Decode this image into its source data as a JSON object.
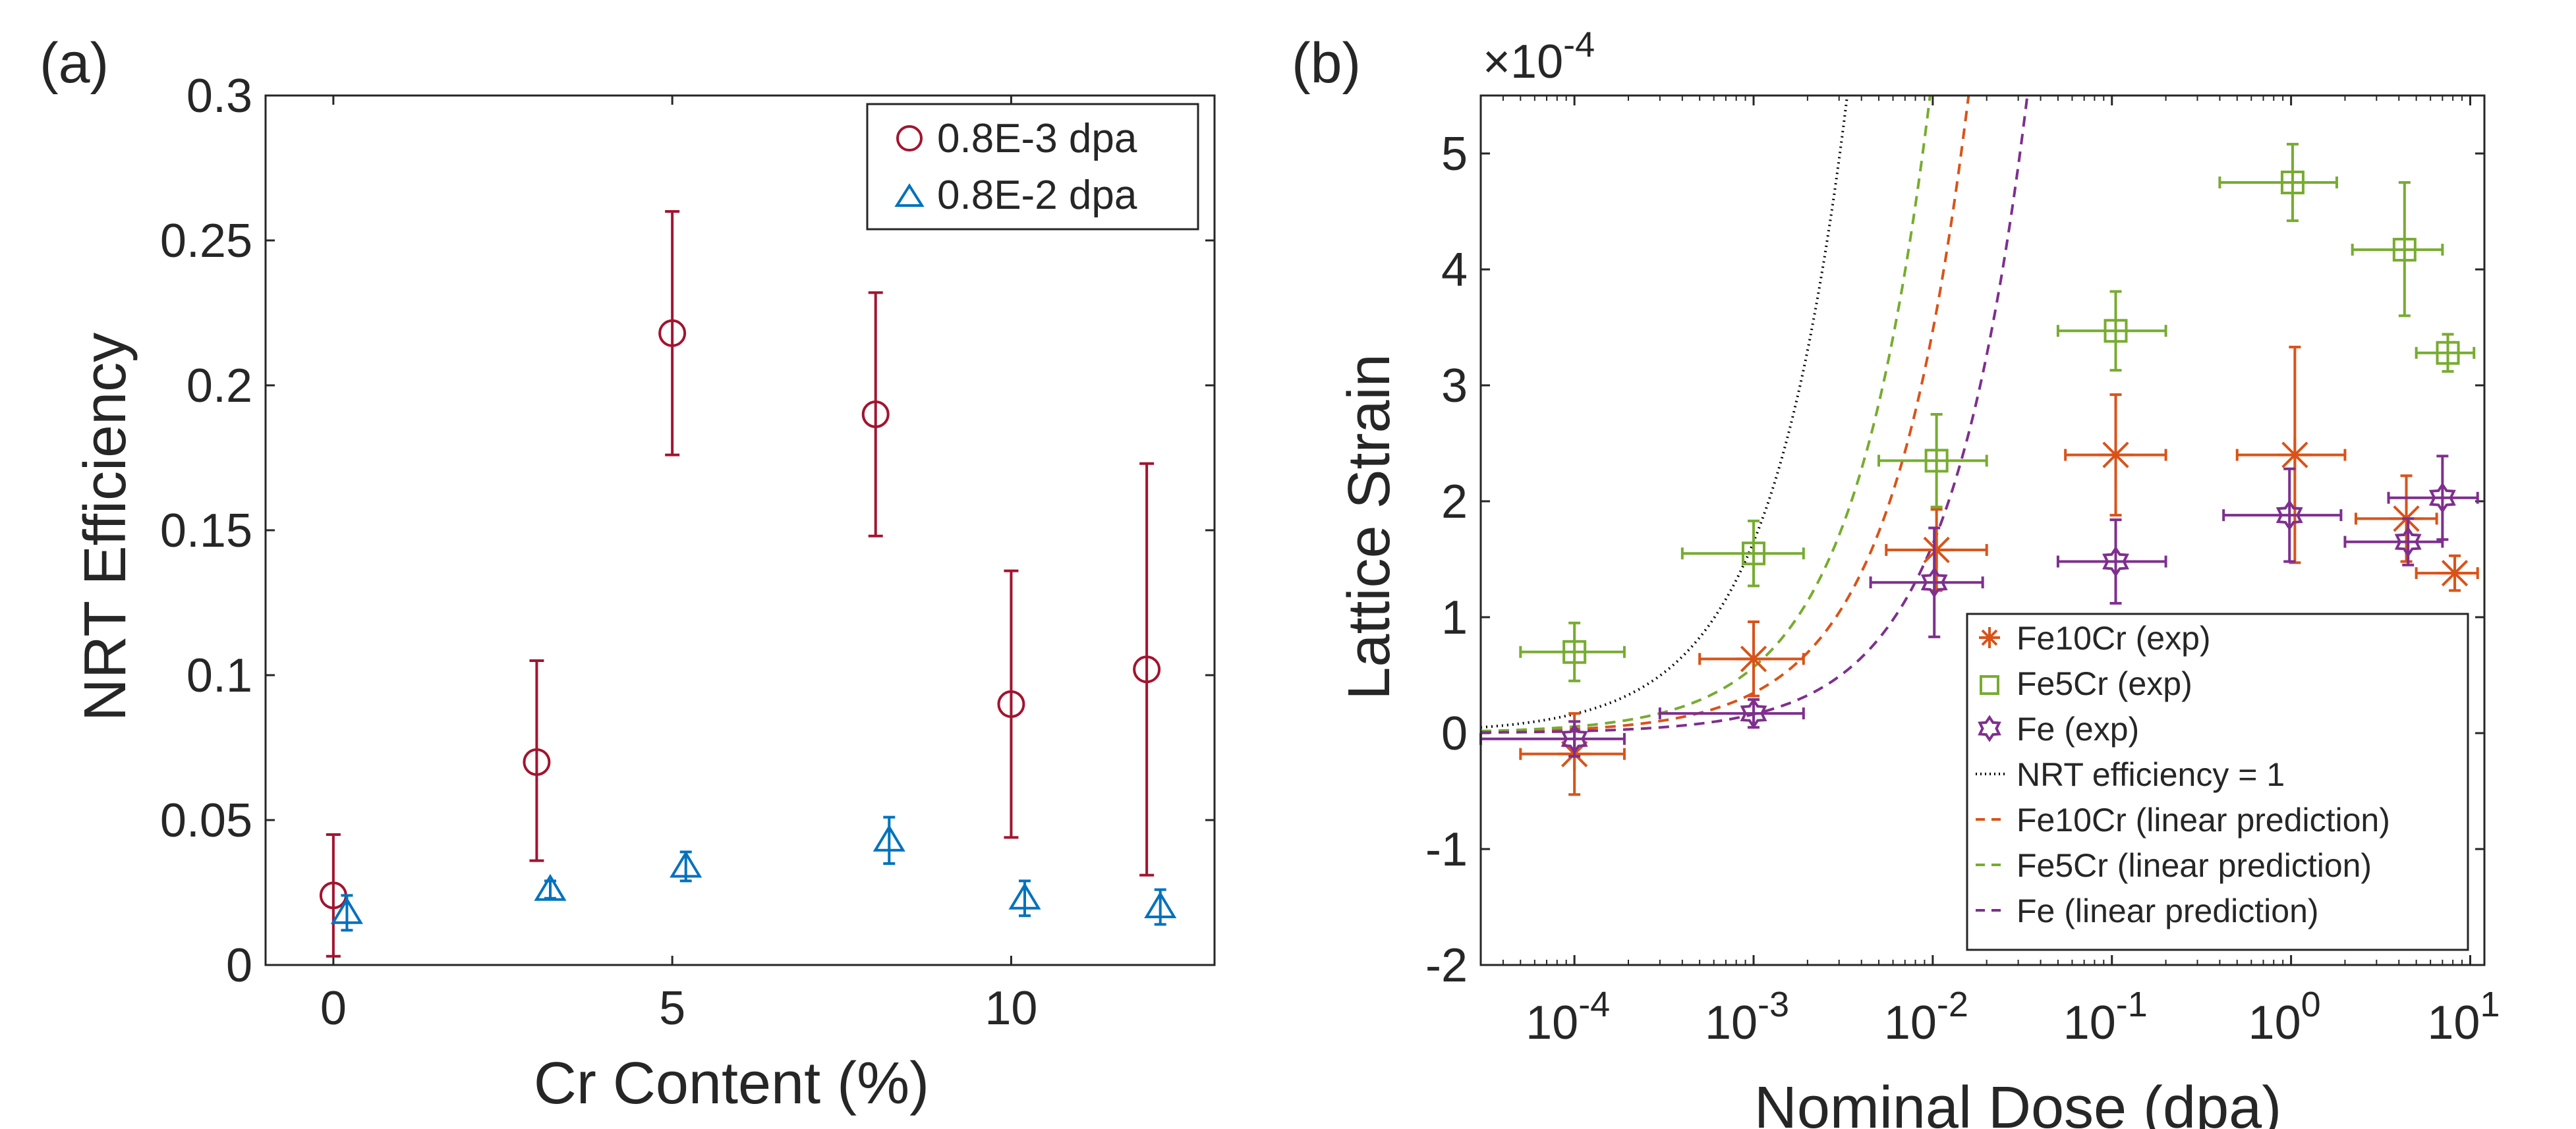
{
  "chart_data": [
    {
      "type": "scatter",
      "panel_label": "(a)",
      "title": "",
      "xlabel": "Cr Content (%)",
      "ylabel": "NRT Efficiency",
      "xlim": [
        -1,
        13
      ],
      "ylim": [
        0,
        0.3
      ],
      "xticks": [
        0,
        5,
        10
      ],
      "xtick_labels": [
        "0",
        "5",
        "10"
      ],
      "yticks": [
        0,
        0.05,
        0.1,
        0.15,
        0.2,
        0.25,
        0.3
      ],
      "ytick_labels": [
        "0",
        "0.05",
        "0.1",
        "0.15",
        "0.2",
        "0.25",
        "0.3"
      ],
      "legend_position": "top-right",
      "series": [
        {
          "name": "0.8E-3 dpa",
          "marker": "circle",
          "color": "#A2142F",
          "x": [
            0,
            3,
            5,
            8,
            10,
            12
          ],
          "y": [
            0.024,
            0.07,
            0.218,
            0.19,
            0.09,
            0.102
          ],
          "err_low": [
            0.021,
            0.034,
            0.042,
            0.042,
            0.046,
            0.071
          ],
          "err_high": [
            0.021,
            0.035,
            0.042,
            0.042,
            0.046,
            0.071
          ]
        },
        {
          "name": "0.8E-2 dpa",
          "marker": "triangle",
          "color": "#0072BD",
          "x": [
            0.2,
            3.2,
            5.2,
            8.2,
            10.2,
            12.2
          ],
          "y": [
            0.018,
            0.026,
            0.034,
            0.043,
            0.023,
            0.02
          ],
          "err_low": [
            0.006,
            0.003,
            0.005,
            0.008,
            0.006,
            0.006
          ],
          "err_high": [
            0.006,
            0.003,
            0.005,
            0.008,
            0.006,
            0.006
          ]
        }
      ]
    },
    {
      "type": "scatter",
      "panel_label": "(b)",
      "title": "",
      "xlabel": "Nominal Dose (dpa)",
      "ylabel": "Lattice Strain",
      "y_multiplier_label": "×10^-4",
      "x_scale": "log",
      "xlim": [
        3e-05,
        12
      ],
      "ylim": [
        -2,
        5.5
      ],
      "xticks": [
        0.0001,
        0.001,
        0.01,
        0.1,
        1,
        10
      ],
      "xtick_labels": [
        {
          "base": "10",
          "exp": "-4"
        },
        {
          "base": "10",
          "exp": "-3"
        },
        {
          "base": "10",
          "exp": "-2"
        },
        {
          "base": "10",
          "exp": "-1"
        },
        {
          "base": "10",
          "exp": "0"
        },
        {
          "base": "10",
          "exp": "1"
        }
      ],
      "yticks": [
        -2,
        -1,
        0,
        1,
        2,
        3,
        4,
        5
      ],
      "ytick_labels": [
        "-2",
        "-1",
        "0",
        "1",
        "2",
        "3",
        "4",
        "5"
      ],
      "legend_position": "bottom-right",
      "series": [
        {
          "name": "Fe10Cr (exp)",
          "marker": "asterisk",
          "color": "#D95319",
          "points": [
            {
              "x": 0.0001,
              "y": -0.18,
              "xlo": 5e-05,
              "xhi": 0.00019,
              "ylo": -0.53,
              "yhi": 0.17
            },
            {
              "x": 0.001,
              "y": 0.64,
              "xlo": 0.0005,
              "xhi": 0.0019,
              "ylo": 0.32,
              "yhi": 0.96
            },
            {
              "x": 0.0105,
              "y": 1.58,
              "xlo": 0.0055,
              "xhi": 0.02,
              "ylo": 1.23,
              "yhi": 1.93
            },
            {
              "x": 0.105,
              "y": 2.4,
              "xlo": 0.055,
              "xhi": 0.2,
              "ylo": 1.88,
              "yhi": 2.92
            },
            {
              "x": 1.05,
              "y": 2.4,
              "xlo": 0.5,
              "xhi": 2.0,
              "ylo": 1.47,
              "yhi": 3.33
            },
            {
              "x": 4.4,
              "y": 1.85,
              "xlo": 2.3,
              "xhi": 6.5,
              "ylo": 1.48,
              "yhi": 2.22
            },
            {
              "x": 8.2,
              "y": 1.38,
              "xlo": 5.0,
              "xhi": 11.0,
              "ylo": 1.23,
              "yhi": 1.53
            }
          ]
        },
        {
          "name": "Fe5Cr (exp)",
          "marker": "square",
          "color": "#77AC30",
          "points": [
            {
              "x": 0.0001,
              "y": 0.7,
              "xlo": 5e-05,
              "xhi": 0.00019,
              "ylo": 0.45,
              "yhi": 0.95
            },
            {
              "x": 0.001,
              "y": 1.55,
              "xlo": 0.0004,
              "xhi": 0.0019,
              "ylo": 1.27,
              "yhi": 1.83
            },
            {
              "x": 0.0105,
              "y": 2.35,
              "xlo": 0.005,
              "xhi": 0.02,
              "ylo": 1.95,
              "yhi": 2.75
            },
            {
              "x": 0.105,
              "y": 3.47,
              "xlo": 0.05,
              "xhi": 0.2,
              "ylo": 3.13,
              "yhi": 3.81
            },
            {
              "x": 1.02,
              "y": 4.75,
              "xlo": 0.4,
              "xhi": 1.8,
              "ylo": 4.42,
              "yhi": 5.08
            },
            {
              "x": 4.3,
              "y": 4.17,
              "xlo": 2.2,
              "xhi": 7.0,
              "ylo": 3.6,
              "yhi": 4.75
            },
            {
              "x": 7.5,
              "y": 3.28,
              "xlo": 5.0,
              "xhi": 10.5,
              "ylo": 3.12,
              "yhi": 3.44
            }
          ]
        },
        {
          "name": "Fe (exp)",
          "marker": "hexagram",
          "color": "#7E2F8E",
          "points": [
            {
              "x": 0.0001,
              "y": -0.05,
              "xlo": 3e-05,
              "xhi": 0.00019,
              "ylo": -0.2,
              "yhi": 0.1
            },
            {
              "x": 0.001,
              "y": 0.17,
              "xlo": 0.0003,
              "xhi": 0.0019,
              "ylo": 0.05,
              "yhi": 0.29
            },
            {
              "x": 0.0102,
              "y": 1.3,
              "xlo": 0.0045,
              "xhi": 0.019,
              "ylo": 0.83,
              "yhi": 1.77
            },
            {
              "x": 0.105,
              "y": 1.48,
              "xlo": 0.05,
              "xhi": 0.2,
              "ylo": 1.12,
              "yhi": 1.84
            },
            {
              "x": 0.98,
              "y": 1.88,
              "xlo": 0.42,
              "xhi": 1.9,
              "ylo": 1.48,
              "yhi": 2.28
            },
            {
              "x": 4.5,
              "y": 1.65,
              "xlo": 2.0,
              "xhi": 7.0,
              "ylo": 1.45,
              "yhi": 1.85
            },
            {
              "x": 7.0,
              "y": 2.03,
              "xlo": 3.5,
              "xhi": 11.0,
              "ylo": 1.67,
              "yhi": 2.39
            }
          ]
        },
        {
          "name": "NRT efficiency = 1",
          "line_style": "dotted",
          "color": "#000000",
          "slope_per_dpa": 16.5
        },
        {
          "name": "Fe10Cr (linear prediction)",
          "line_style": "dashed",
          "color": "#D95319",
          "slope_per_dpa": 3.47
        },
        {
          "name": "Fe5Cr (linear prediction)",
          "line_style": "dashed",
          "color": "#77AC30",
          "slope_per_dpa": 5.69
        },
        {
          "name": "Fe (linear prediction)",
          "line_style": "dashed",
          "color": "#7E2F8E",
          "slope_per_dpa": 1.63
        }
      ]
    }
  ]
}
